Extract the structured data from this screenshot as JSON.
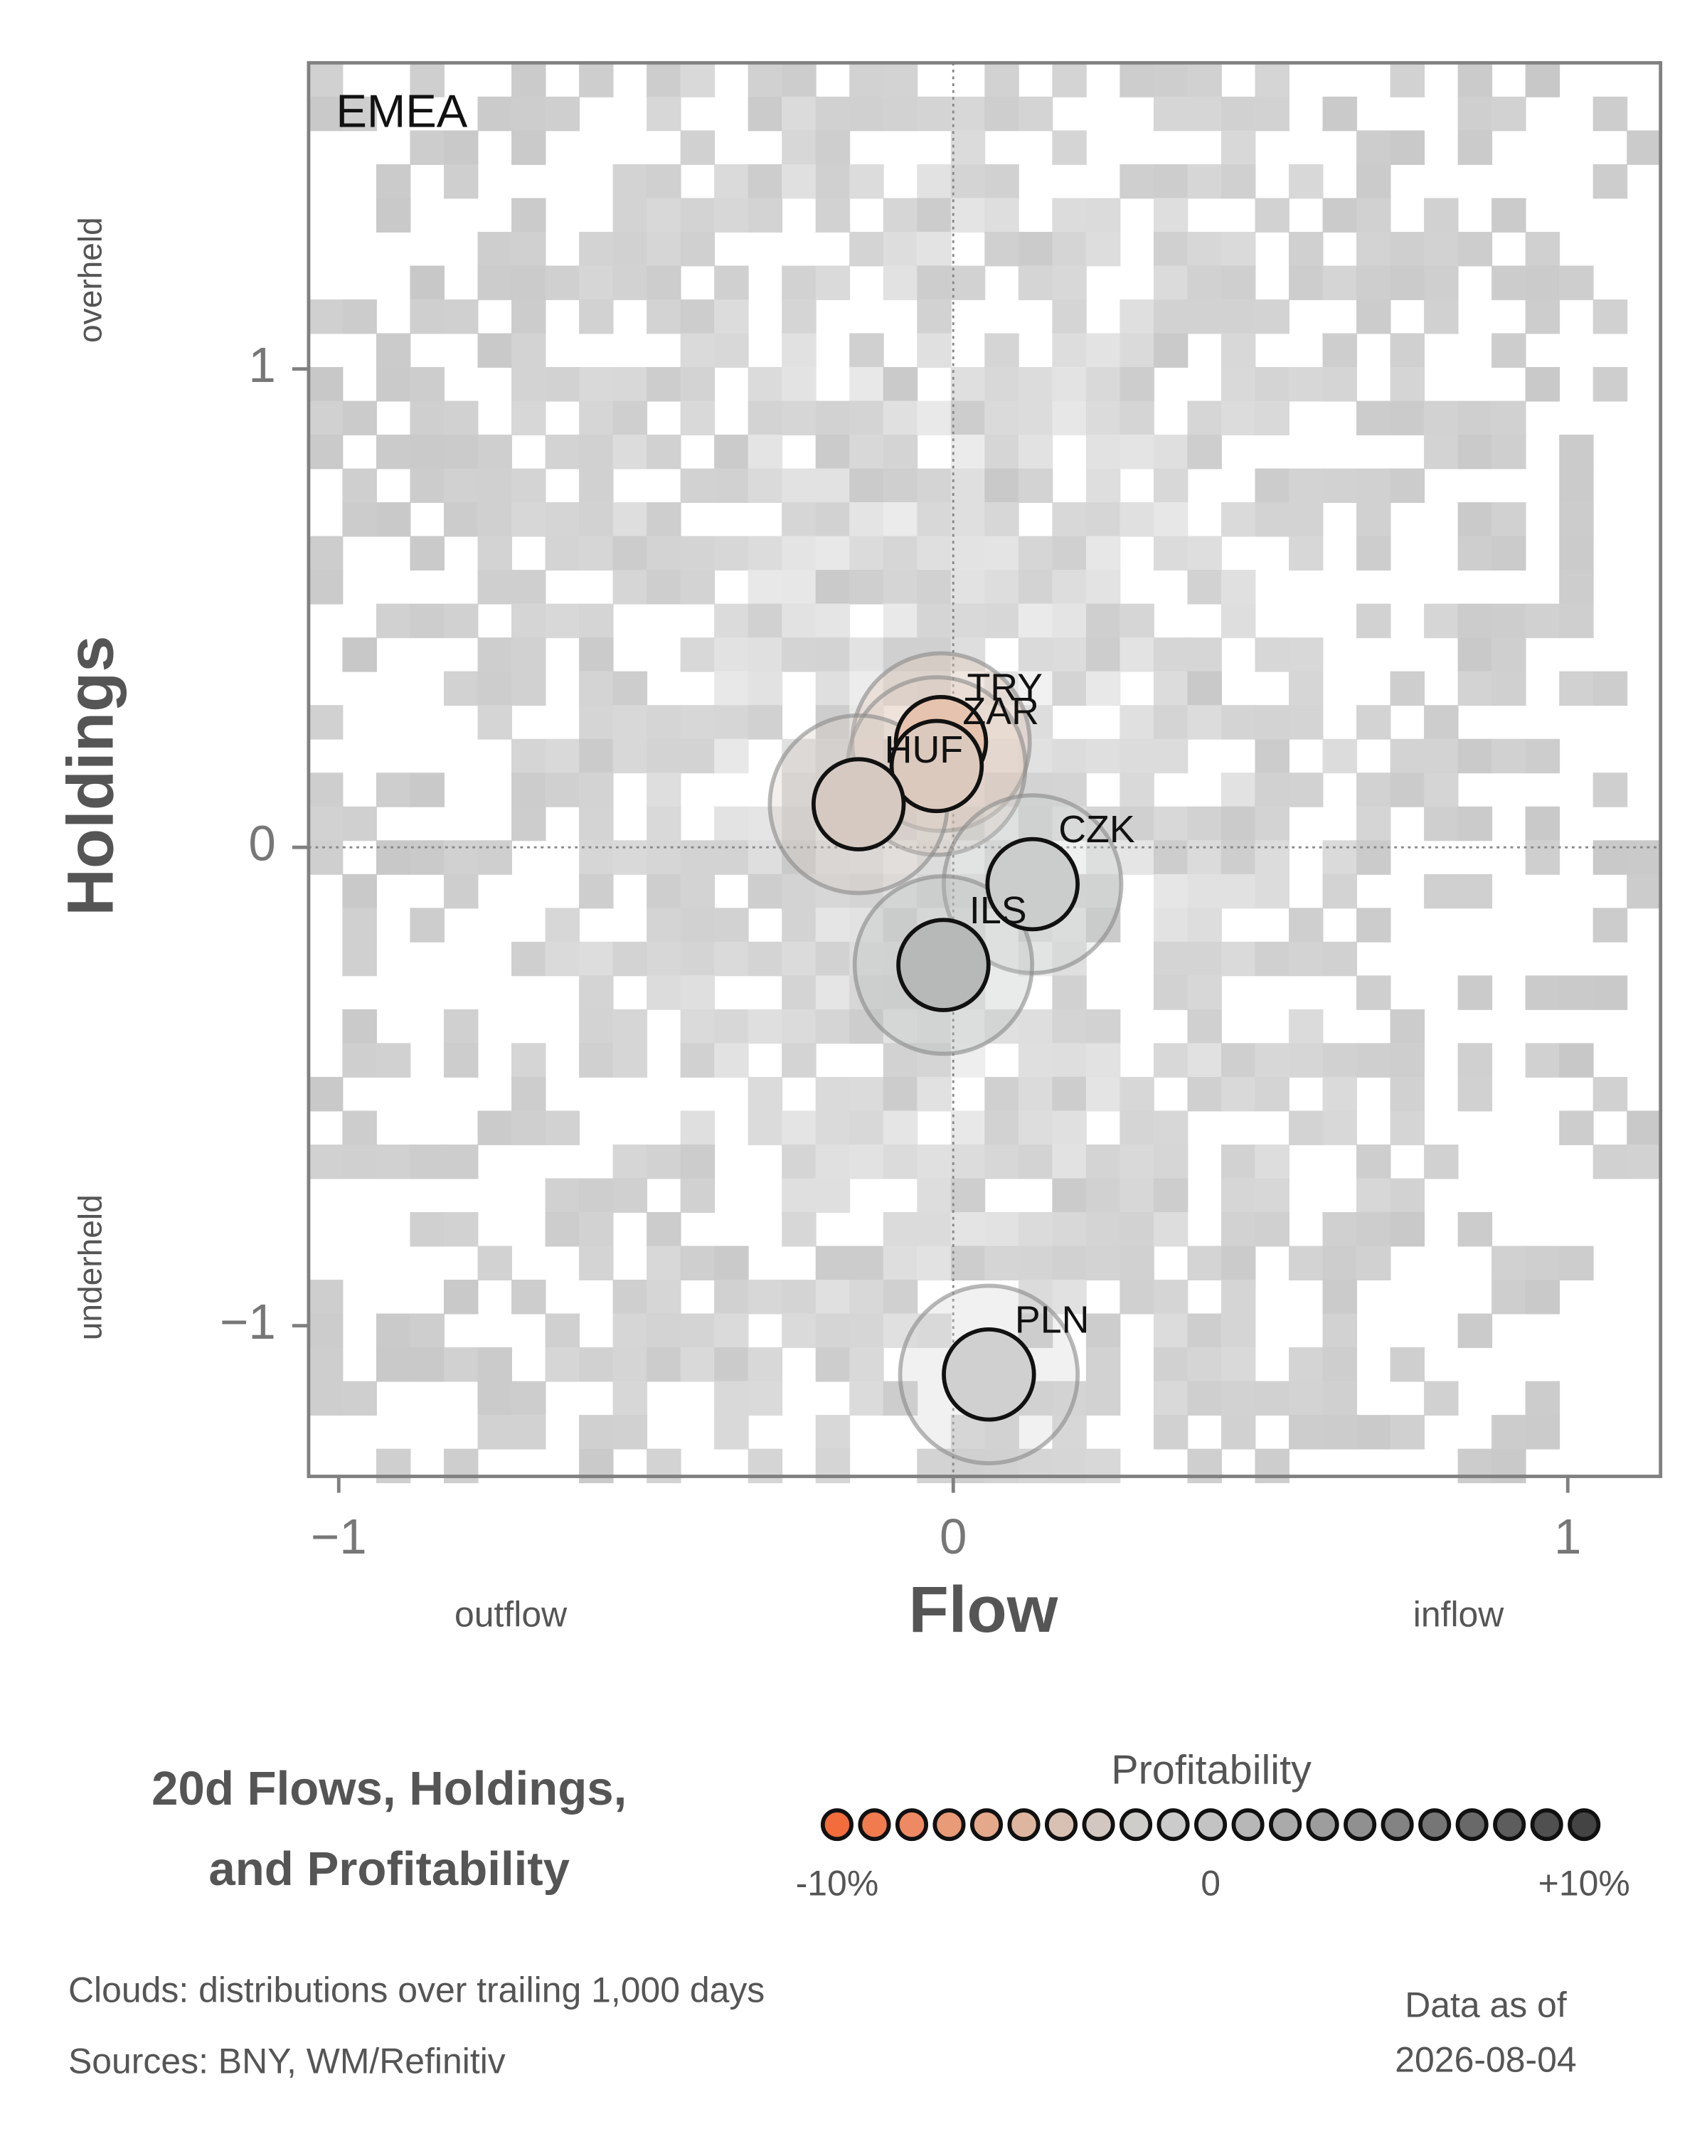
{
  "chart_data": {
    "type": "scatter",
    "panel_label": "EMEA",
    "x_label": "Flow",
    "y_label": "Holdings",
    "y_high_note": "overheld",
    "y_low_note": "underheld",
    "x_low_note": "outflow",
    "x_high_note": "inflow",
    "xlim": [
      -1.049,
      1.151
    ],
    "ylim": [
      -1.315,
      1.64
    ],
    "xticks": [
      {
        "value": -1,
        "label": "−1"
      },
      0,
      1
    ],
    "yticks": [
      {
        "value": -1,
        "label": "−1"
      },
      0,
      1
    ],
    "series": [
      {
        "name": "TRY",
        "color": "#e6c3ae",
        "x": [
          -0.02
        ],
        "values": [
          0.22
        ]
      },
      {
        "name": "ZAR",
        "color": "#dcc9bd",
        "x": [
          -0.027
        ],
        "values": [
          0.17
        ]
      },
      {
        "name": "HUF",
        "color": "#d5c9c2",
        "x": [
          -0.154
        ],
        "values": [
          0.09
        ]
      },
      {
        "name": "CZK",
        "color": "#cbcdcd",
        "x": [
          0.129
        ],
        "values": [
          -0.077
        ]
      },
      {
        "name": "ILS",
        "color": "#b7b9b9",
        "x": [
          -0.016
        ],
        "values": [
          -0.246
        ]
      },
      {
        "name": "PLN",
        "color": "#d0d0d0",
        "x": [
          0.058
        ],
        "values": [
          -1.102
        ]
      }
    ],
    "title_lines": [
      "20d Flows, Holdings,",
      "and Profitability"
    ],
    "colorbar": {
      "title": "Profitability",
      "lim": [
        -10,
        10
      ],
      "ticks": [
        {
          "value": -10,
          "label": "-10%"
        },
        0,
        {
          "value": 10,
          "label": "+10%"
        }
      ],
      "colors": [
        "#f26c3c",
        "#f07b4f",
        "#ed8a63",
        "#e99a77",
        "#e4a98b",
        "#deb69f",
        "#d8c0b2",
        "#d3c8c1",
        "#cfcdca",
        "#cacbca",
        "#c2c3c2",
        "#b6b7b6",
        "#a9aaa9",
        "#9c9d9c",
        "#8f908f",
        "#828382",
        "#757675",
        "#686968",
        "#5c5d5c",
        "#4f504f",
        "#434443"
      ]
    },
    "footnotes": [
      "Clouds:  distributions over trailing 1,000 days",
      "Sources:  BNY, WM/Refinitiv"
    ],
    "date_caption": "Data as of",
    "date": "2026-08-04"
  }
}
